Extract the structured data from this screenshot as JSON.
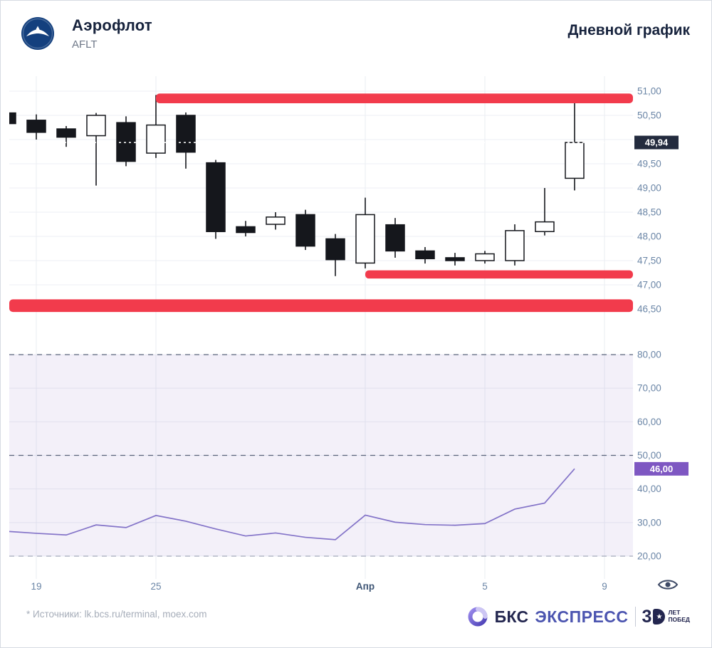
{
  "header": {
    "title": "Аэрофлот",
    "ticker": "AFLT",
    "chart_type_label": "Дневной график"
  },
  "footer": {
    "sources": "* Источники: lk.bcs.ru/terminal, moex.com",
    "brand": {
      "name_bold": "БКС",
      "name_light": "ЭКСПРЕСС",
      "anniversary_number": "3",
      "anniversary_star": "★",
      "anniversary_line1": "ЛЕТ",
      "anniversary_line2": "ПОБЕД"
    }
  },
  "chart_data": [
    {
      "type": "candlestick",
      "panel": "price",
      "ylim": [
        46.3,
        51.15
      ],
      "ytick_labels": [
        "51,00",
        "50,50",
        "50,00",
        "49,50",
        "49,00",
        "48,50",
        "48,00",
        "47,50",
        "47,00",
        "46,50"
      ],
      "ytick_values": [
        51.0,
        50.5,
        50.0,
        49.5,
        49.0,
        48.5,
        48.0,
        47.5,
        47.0,
        46.5
      ],
      "xticks": [
        {
          "label": "19",
          "index": 1,
          "emphasis": false
        },
        {
          "label": "25",
          "index": 5,
          "emphasis": false
        },
        {
          "label": "Апр",
          "index": 12,
          "emphasis": true
        },
        {
          "label": "5",
          "index": 16,
          "emphasis": false
        },
        {
          "label": "9",
          "index": 20,
          "emphasis": false
        }
      ],
      "candles_ohlc": [
        [
          50.55,
          50.62,
          50.28,
          50.33
        ],
        [
          50.4,
          50.52,
          50.0,
          50.15
        ],
        [
          50.22,
          50.28,
          49.85,
          50.05
        ],
        [
          50.08,
          50.55,
          49.05,
          50.5
        ],
        [
          50.35,
          50.48,
          49.45,
          49.55
        ],
        [
          49.72,
          50.92,
          49.62,
          50.3
        ],
        [
          50.5,
          50.56,
          49.4,
          49.74
        ],
        [
          49.52,
          49.58,
          47.95,
          48.1
        ],
        [
          48.2,
          48.32,
          48.0,
          48.08
        ],
        [
          48.25,
          48.5,
          48.14,
          48.4
        ],
        [
          48.45,
          48.55,
          47.72,
          47.8
        ],
        [
          47.95,
          48.05,
          47.18,
          47.52
        ],
        [
          47.45,
          48.8,
          47.34,
          48.45
        ],
        [
          48.24,
          48.38,
          47.56,
          47.7
        ],
        [
          47.7,
          47.78,
          47.44,
          47.54
        ],
        [
          47.56,
          47.66,
          47.4,
          47.5
        ],
        [
          47.5,
          47.7,
          47.44,
          47.64
        ],
        [
          47.5,
          48.25,
          47.4,
          48.12
        ],
        [
          48.1,
          49.0,
          48.02,
          48.3
        ],
        [
          49.2,
          50.75,
          48.95,
          49.94
        ]
      ],
      "levels": [
        {
          "from": 50.75,
          "to": 50.95,
          "start_index": 5,
          "color": "#F23B4C"
        },
        {
          "from": 47.13,
          "to": 47.3,
          "start_index": 12,
          "color": "#F23B4C"
        },
        {
          "from": 46.44,
          "to": 46.7,
          "start_index": -1,
          "color": "#F23B4C"
        }
      ],
      "last_price": 49.94,
      "last_price_label": "49,94",
      "badge_color": "#232B3E",
      "up_color": "#FFFFFF",
      "down_color": "#15171C"
    },
    {
      "type": "line",
      "panel": "oscillator",
      "ylim": [
        15,
        85
      ],
      "ytick_labels": [
        "80,00",
        "70,00",
        "60,00",
        "50,00",
        "40,00",
        "30,00",
        "20,00"
      ],
      "ytick_values": [
        80,
        70,
        60,
        50,
        40,
        30,
        20
      ],
      "shaded_band": {
        "from": 20,
        "to": 80,
        "color": "#7E57C2",
        "opacity": 0.09
      },
      "dashed_levels": [
        80,
        50,
        20
      ],
      "values": [
        27.4,
        26.8,
        26.3,
        29.3,
        28.5,
        32.1,
        30.4,
        28.1,
        26.0,
        26.9,
        25.6,
        24.9,
        32.2,
        30.1,
        29.4,
        29.2,
        29.7,
        34.0,
        35.8,
        46.0
      ],
      "line_color": "#8373C8",
      "last_value": 46.0,
      "last_value_label": "46,00",
      "badge_color": "#7E57C2"
    }
  ]
}
